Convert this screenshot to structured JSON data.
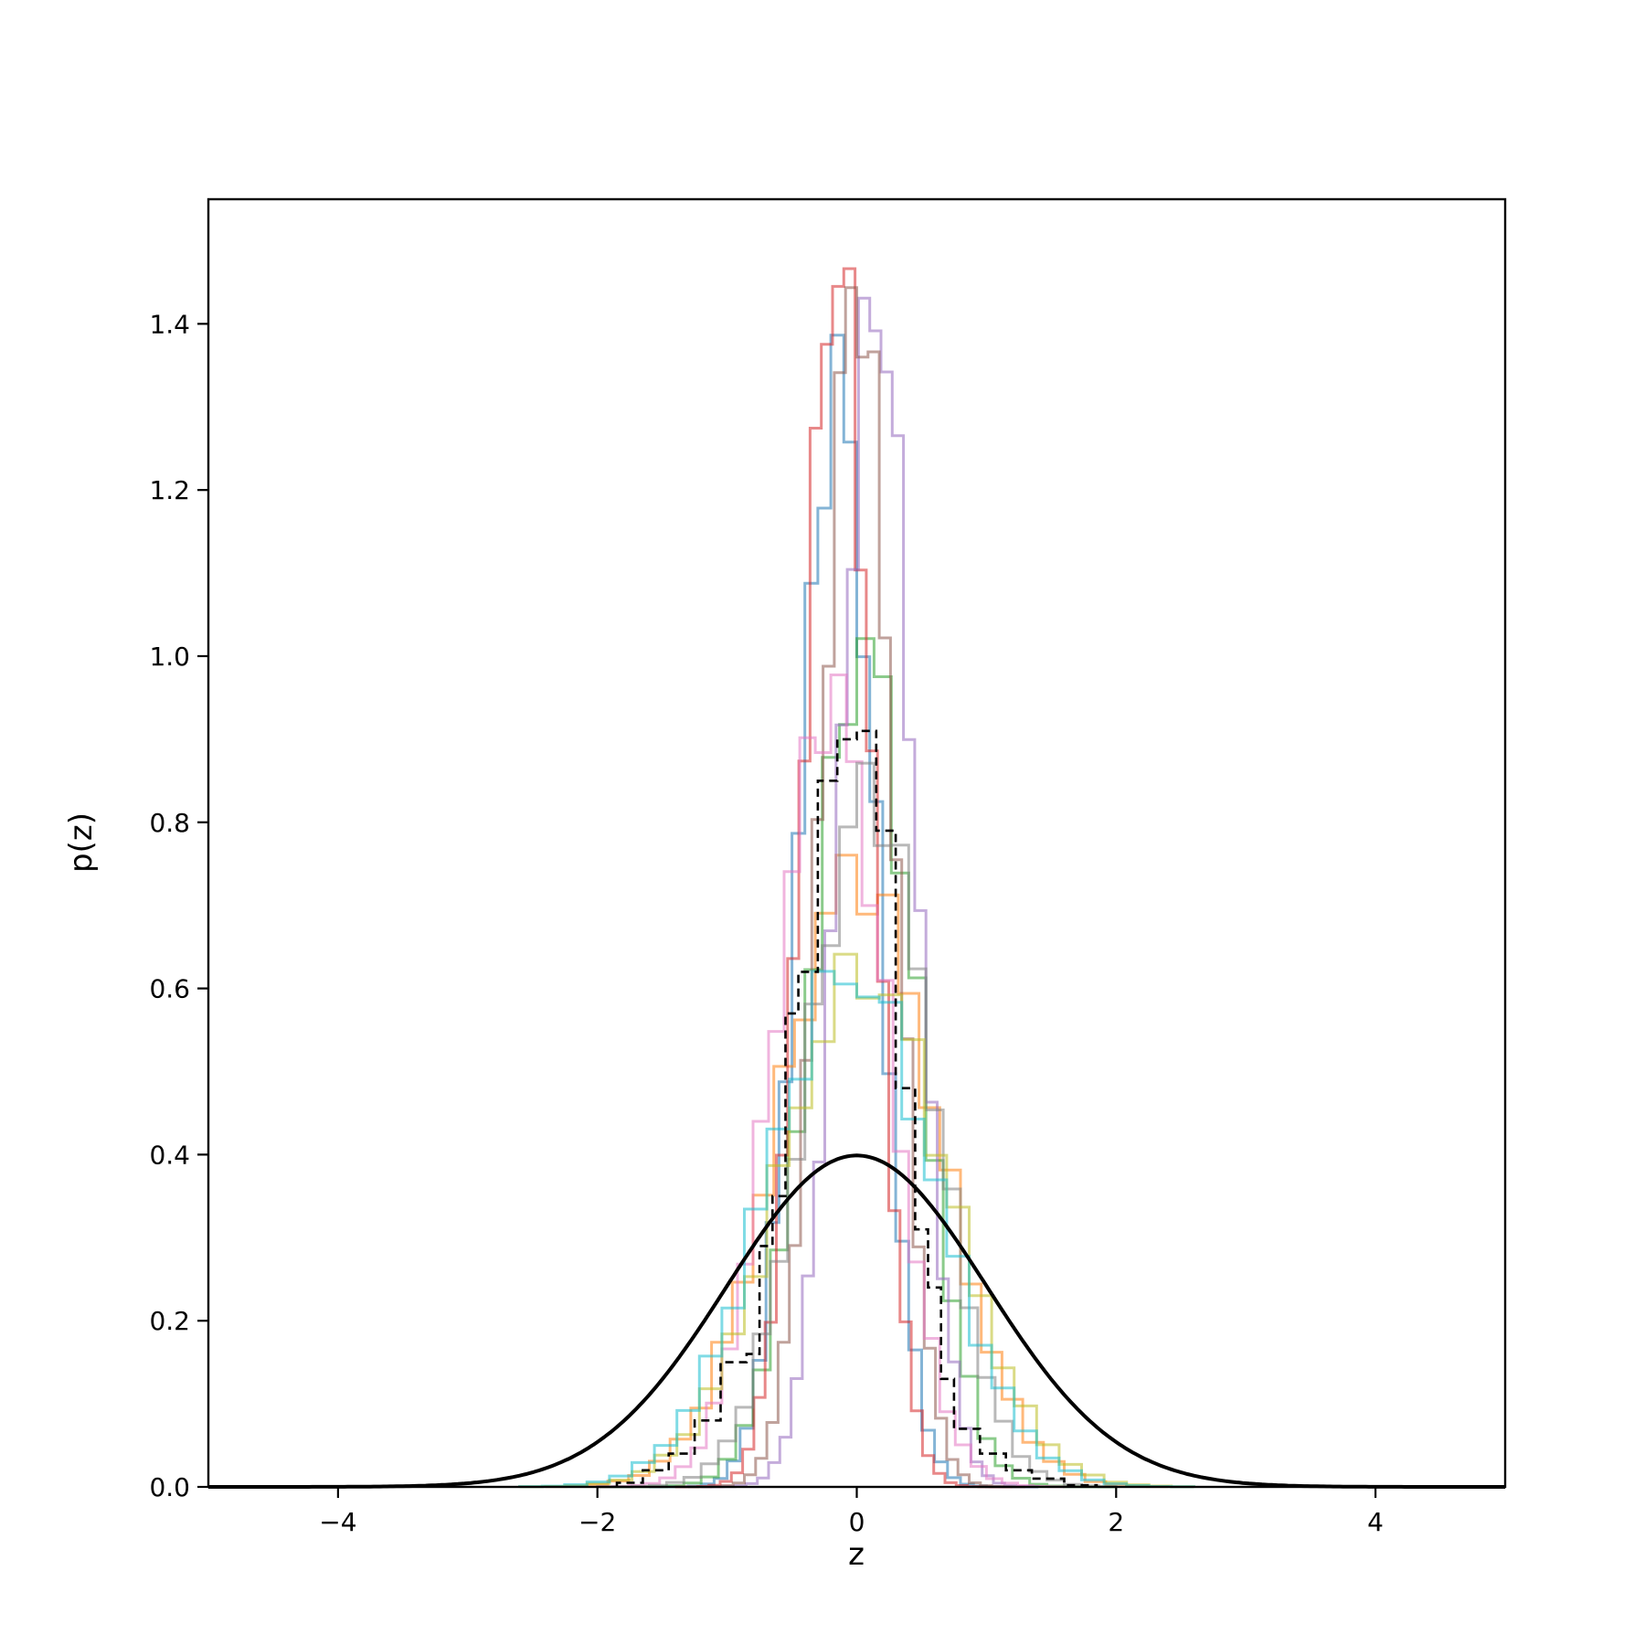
{
  "chart_data": {
    "type": "line",
    "xlabel": "z",
    "ylabel": "p(z)",
    "xlim": [
      -5,
      5
    ],
    "ylim": [
      0,
      1.55
    ],
    "xticks": [
      -4,
      -2,
      0,
      2,
      4
    ],
    "xtick_labels": [
      "−4",
      "−2",
      "0",
      "2",
      "4"
    ],
    "yticks": [
      0.0,
      0.2,
      0.4,
      0.6,
      0.8,
      1.0,
      1.2,
      1.4
    ],
    "ytick_labels": [
      "0.0",
      "0.2",
      "0.4",
      "0.6",
      "0.8",
      "1.0",
      "1.2",
      "1.4"
    ],
    "grid": false,
    "legend": "none",
    "reference_curve": {
      "kind": "standard normal pdf",
      "mean": 0,
      "std": 1,
      "color": "#000000"
    },
    "aggregate_histogram": {
      "style": "dashed",
      "color": "#000000",
      "edges": [
        -1.85,
        -1.65,
        -1.45,
        -1.25,
        -1.05,
        -0.85,
        -0.75,
        -0.65,
        -0.55,
        -0.45,
        -0.3,
        -0.15,
        0.0,
        0.15,
        0.3,
        0.45,
        0.55,
        0.65,
        0.75,
        0.95,
        1.15,
        1.35,
        1.6,
        1.85
      ],
      "values": [
        0.005,
        0.02,
        0.04,
        0.08,
        0.15,
        0.16,
        0.29,
        0.35,
        0.57,
        0.62,
        0.85,
        0.9,
        0.91,
        0.79,
        0.48,
        0.31,
        0.24,
        0.13,
        0.07,
        0.04,
        0.02,
        0.01,
        0.002
      ]
    },
    "histograms": [
      {
        "color": "#1f77b4",
        "mean": -0.15,
        "std": 0.29,
        "bins": 30,
        "range": [
          -1.6,
          1.4
        ],
        "peak": 1.33
      },
      {
        "color": "#ff7f0e",
        "mean": 0.0,
        "std": 0.6,
        "bins": 30,
        "range": [
          -2.4,
          2.4
        ],
        "peak": 0.74
      },
      {
        "color": "#2ca02c",
        "mean": 0.05,
        "std": 0.4,
        "bins": 30,
        "range": [
          -2.0,
          2.0
        ],
        "peak": 1.01
      },
      {
        "color": "#d62728",
        "mean": -0.15,
        "std": 0.26,
        "bins": 30,
        "range": [
          -1.4,
          1.2
        ],
        "peak": 1.48
      },
      {
        "color": "#9467bd",
        "mean": 0.15,
        "std": 0.28,
        "bins": 30,
        "range": [
          -1.2,
          1.4
        ],
        "peak": 1.43
      },
      {
        "color": "#8c564b",
        "mean": 0.0,
        "std": 0.27,
        "bins": 30,
        "range": [
          -1.3,
          1.3
        ],
        "peak": 1.45
      },
      {
        "color": "#e377c2",
        "mean": -0.2,
        "std": 0.42,
        "bins": 30,
        "range": [
          -2.0,
          1.6
        ],
        "peak": 0.95
      },
      {
        "color": "#7f7f7f",
        "mean": 0.1,
        "std": 0.47,
        "bins": 30,
        "range": [
          -2.0,
          2.0
        ],
        "peak": 0.84
      },
      {
        "color": "#bcbd22",
        "mean": 0.05,
        "std": 0.64,
        "bins": 30,
        "range": [
          -2.6,
          2.6
        ],
        "peak": 0.62
      },
      {
        "color": "#17becf",
        "mean": -0.05,
        "std": 0.64,
        "bins": 30,
        "range": [
          -2.6,
          2.6
        ],
        "peak": 0.62
      }
    ]
  }
}
